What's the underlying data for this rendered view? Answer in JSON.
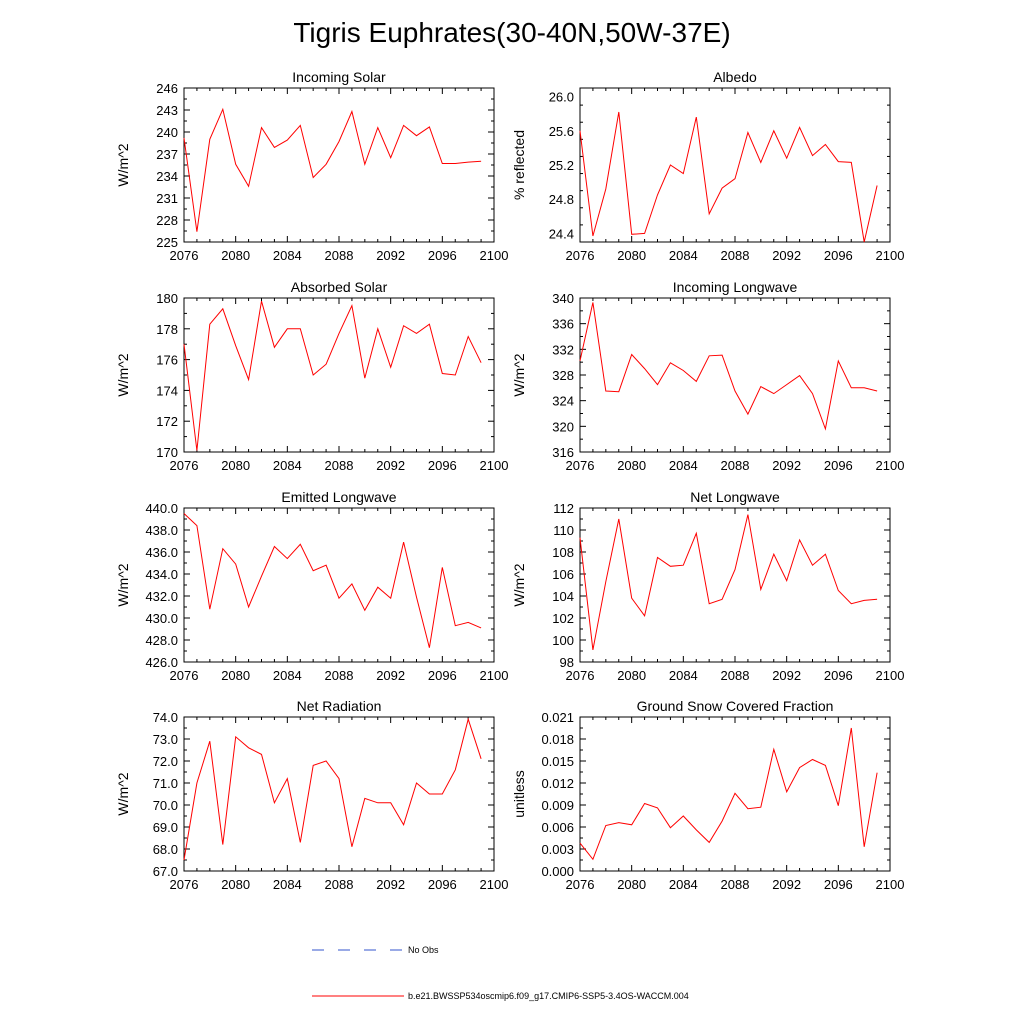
{
  "figure": {
    "title": "Tigris Euphrates(30-40N,50W-37E)",
    "legend_obs_label": "No Obs",
    "legend_model_label": "b.e21.BWSSP534oscmip6.f09_g17.CMIP6-SSP5-3.4OS-WACCM.004",
    "obs_color": "#3355cc",
    "model_color": "#ff0000"
  },
  "chart_data": [
    {
      "type": "line",
      "title": "Incoming Solar",
      "ylabel": "W/m^2",
      "xlabel": "",
      "xlim": [
        2076,
        2100
      ],
      "ylim": [
        225,
        246
      ],
      "x_ticks": [
        "2076",
        "2080",
        "2084",
        "2088",
        "2092",
        "2096",
        "2100"
      ],
      "y_ticks": [
        "225",
        "228",
        "231",
        "234",
        "237",
        "240",
        "243",
        "246"
      ],
      "series": [
        {
          "name": "b.e21.BWSSP534oscmip6.f09_g17.CMIP6-SSP5-3.4OS-WACCM.004",
          "x": [
            2076,
            2077,
            2078,
            2079,
            2080,
            2081,
            2082,
            2083,
            2084,
            2085,
            2086,
            2087,
            2088,
            2089,
            2090,
            2091,
            2092,
            2093,
            2094,
            2095,
            2096,
            2097,
            2098,
            2099
          ],
          "values": [
            239.2,
            226.4,
            239.0,
            243.1,
            235.6,
            232.6,
            240.6,
            237.9,
            238.9,
            240.9,
            233.8,
            235.6,
            238.7,
            242.8,
            235.6,
            240.6,
            236.5,
            240.9,
            239.5,
            240.7,
            235.7,
            235.7,
            235.9,
            236.0
          ]
        }
      ]
    },
    {
      "type": "line",
      "title": "Albedo",
      "ylabel": "% reflected",
      "xlabel": "",
      "xlim": [
        2076,
        2100
      ],
      "ylim": [
        24.3,
        26.1
      ],
      "x_ticks": [
        "2076",
        "2080",
        "2084",
        "2088",
        "2092",
        "2096",
        "2100"
      ],
      "y_ticks": [
        "24.4",
        "24.8",
        "25.2",
        "25.6",
        "26.0"
      ],
      "series": [
        {
          "name": "b.e21.BWSSP534oscmip6.f09_g17.CMIP6-SSP5-3.4OS-WACCM.004",
          "x": [
            2076,
            2077,
            2078,
            2079,
            2080,
            2081,
            2082,
            2083,
            2084,
            2085,
            2086,
            2087,
            2088,
            2089,
            2090,
            2091,
            2092,
            2093,
            2094,
            2095,
            2096,
            2097,
            2098,
            2099
          ],
          "values": [
            25.6,
            24.37,
            24.92,
            25.82,
            24.39,
            24.4,
            24.85,
            25.2,
            25.1,
            25.76,
            24.63,
            24.93,
            25.04,
            25.58,
            25.23,
            25.6,
            25.28,
            25.64,
            25.31,
            25.44,
            25.24,
            25.23,
            24.3,
            24.96
          ]
        }
      ]
    },
    {
      "type": "line",
      "title": "Absorbed Solar",
      "ylabel": "W/m^2",
      "xlabel": "",
      "xlim": [
        2076,
        2100
      ],
      "ylim": [
        170,
        180
      ],
      "x_ticks": [
        "2076",
        "2080",
        "2084",
        "2088",
        "2092",
        "2096",
        "2100"
      ],
      "y_ticks": [
        "170",
        "172",
        "174",
        "176",
        "178",
        "180"
      ],
      "series": [
        {
          "name": "b.e21.BWSSP534oscmip6.f09_g17.CMIP6-SSP5-3.4OS-WACCM.004",
          "x": [
            2076,
            2077,
            2078,
            2079,
            2080,
            2081,
            2082,
            2083,
            2084,
            2085,
            2086,
            2087,
            2088,
            2089,
            2090,
            2091,
            2092,
            2093,
            2094,
            2095,
            2096,
            2097,
            2098,
            2099
          ],
          "values": [
            177.0,
            170.1,
            178.3,
            179.3,
            176.9,
            174.7,
            179.8,
            176.8,
            178.0,
            178.0,
            175.0,
            175.7,
            177.7,
            179.5,
            174.8,
            178.0,
            175.5,
            178.2,
            177.7,
            178.3,
            175.1,
            175.0,
            177.5,
            175.8
          ]
        }
      ]
    },
    {
      "type": "line",
      "title": "Incoming Longwave",
      "ylabel": "W/m^2",
      "xlabel": "",
      "xlim": [
        2076,
        2100
      ],
      "ylim": [
        316,
        340
      ],
      "x_ticks": [
        "2076",
        "2080",
        "2084",
        "2088",
        "2092",
        "2096",
        "2100"
      ],
      "y_ticks": [
        "316",
        "320",
        "324",
        "328",
        "332",
        "336",
        "340"
      ],
      "series": [
        {
          "name": "b.e21.BWSSP534oscmip6.f09_g17.CMIP6-SSP5-3.4OS-WACCM.004",
          "x": [
            2076,
            2077,
            2078,
            2079,
            2080,
            2081,
            2082,
            2083,
            2084,
            2085,
            2086,
            2087,
            2088,
            2089,
            2090,
            2091,
            2092,
            2093,
            2094,
            2095,
            2096,
            2097,
            2098,
            2099
          ],
          "values": [
            330.2,
            339.3,
            325.5,
            325.4,
            331.2,
            329.0,
            326.5,
            329.9,
            328.7,
            327.0,
            331.0,
            331.1,
            325.5,
            321.9,
            326.2,
            325.1,
            326.5,
            327.9,
            325.1,
            319.6,
            330.2,
            326.0,
            326.0,
            325.5
          ]
        }
      ]
    },
    {
      "type": "line",
      "title": "Emitted Longwave",
      "ylabel": "W/m^2",
      "xlabel": "",
      "xlim": [
        2076,
        2100
      ],
      "ylim": [
        426,
        440
      ],
      "x_ticks": [
        "2076",
        "2080",
        "2084",
        "2088",
        "2092",
        "2096",
        "2100"
      ],
      "y_ticks": [
        "426.0",
        "428.0",
        "430.0",
        "432.0",
        "434.0",
        "436.0",
        "438.0",
        "440.0"
      ],
      "series": [
        {
          "name": "b.e21.BWSSP534oscmip6.f09_g17.CMIP6-SSP5-3.4OS-WACCM.004",
          "x": [
            2076,
            2077,
            2078,
            2079,
            2080,
            2081,
            2082,
            2083,
            2084,
            2085,
            2086,
            2087,
            2088,
            2089,
            2090,
            2091,
            2092,
            2093,
            2094,
            2095,
            2096,
            2097,
            2098,
            2099
          ],
          "values": [
            439.5,
            438.4,
            430.8,
            436.3,
            434.9,
            431.0,
            433.8,
            436.5,
            435.4,
            436.7,
            434.3,
            434.8,
            431.8,
            433.1,
            430.7,
            432.8,
            431.8,
            436.9,
            431.9,
            427.3,
            434.6,
            429.3,
            429.6,
            429.1
          ]
        }
      ]
    },
    {
      "type": "line",
      "title": "Net Longwave",
      "ylabel": "W/m^2",
      "xlabel": "",
      "xlim": [
        2076,
        2100
      ],
      "ylim": [
        98,
        112
      ],
      "x_ticks": [
        "2076",
        "2080",
        "2084",
        "2088",
        "2092",
        "2096",
        "2100"
      ],
      "y_ticks": [
        "98",
        "100",
        "102",
        "104",
        "106",
        "108",
        "110",
        "112"
      ],
      "series": [
        {
          "name": "b.e21.BWSSP534oscmip6.f09_g17.CMIP6-SSP5-3.4OS-WACCM.004",
          "x": [
            2076,
            2077,
            2078,
            2079,
            2080,
            2081,
            2082,
            2083,
            2084,
            2085,
            2086,
            2087,
            2088,
            2089,
            2090,
            2091,
            2092,
            2093,
            2094,
            2095,
            2096,
            2097,
            2098,
            2099
          ],
          "values": [
            109.3,
            99.1,
            105.3,
            111.0,
            103.8,
            102.2,
            107.5,
            106.7,
            106.8,
            109.7,
            103.3,
            103.7,
            106.4,
            111.4,
            104.6,
            107.8,
            105.4,
            109.1,
            106.8,
            107.8,
            104.5,
            103.3,
            103.6,
            103.7
          ]
        }
      ]
    },
    {
      "type": "line",
      "title": "Net Radiation",
      "ylabel": "W/m^2",
      "xlabel": "",
      "xlim": [
        2076,
        2100
      ],
      "ylim": [
        67,
        74
      ],
      "x_ticks": [
        "2076",
        "2080",
        "2084",
        "2088",
        "2092",
        "2096",
        "2100"
      ],
      "y_ticks": [
        "67.0",
        "68.0",
        "69.0",
        "70.0",
        "71.0",
        "72.0",
        "73.0",
        "74.0"
      ],
      "series": [
        {
          "name": "b.e21.BWSSP534oscmip6.f09_g17.CMIP6-SSP5-3.4OS-WACCM.004",
          "x": [
            2076,
            2077,
            2078,
            2079,
            2080,
            2081,
            2082,
            2083,
            2084,
            2085,
            2086,
            2087,
            2088,
            2089,
            2090,
            2091,
            2092,
            2093,
            2094,
            2095,
            2096,
            2097,
            2098,
            2099
          ],
          "values": [
            67.5,
            71.0,
            72.9,
            68.2,
            73.1,
            72.6,
            72.3,
            70.1,
            71.2,
            68.3,
            71.8,
            72.0,
            71.2,
            68.1,
            70.3,
            70.1,
            70.1,
            69.1,
            71.0,
            70.5,
            70.5,
            71.6,
            73.9,
            72.1
          ]
        }
      ]
    },
    {
      "type": "line",
      "title": "Ground Snow Covered Fraction",
      "ylabel": "unitless",
      "xlabel": "",
      "xlim": [
        2076,
        2100
      ],
      "ylim": [
        0,
        0.021
      ],
      "x_ticks": [
        "2076",
        "2080",
        "2084",
        "2088",
        "2092",
        "2096",
        "2100"
      ],
      "y_ticks": [
        "0.000",
        "0.003",
        "0.006",
        "0.009",
        "0.012",
        "0.015",
        "0.018",
        "0.021"
      ],
      "series": [
        {
          "name": "b.e21.BWSSP534oscmip6.f09_g17.CMIP6-SSP5-3.4OS-WACCM.004",
          "x": [
            2076,
            2077,
            2078,
            2079,
            2080,
            2081,
            2082,
            2083,
            2084,
            2085,
            2086,
            2087,
            2088,
            2089,
            2090,
            2091,
            2092,
            2093,
            2094,
            2095,
            2096,
            2097,
            2098,
            2099
          ],
          "values": [
            0.0038,
            0.0016,
            0.0062,
            0.0066,
            0.0063,
            0.0092,
            0.0086,
            0.0059,
            0.0075,
            0.0056,
            0.0039,
            0.0068,
            0.0106,
            0.0085,
            0.0087,
            0.0166,
            0.0108,
            0.0141,
            0.0152,
            0.0144,
            0.0089,
            0.0195,
            0.0033,
            0.0134
          ]
        }
      ]
    }
  ]
}
